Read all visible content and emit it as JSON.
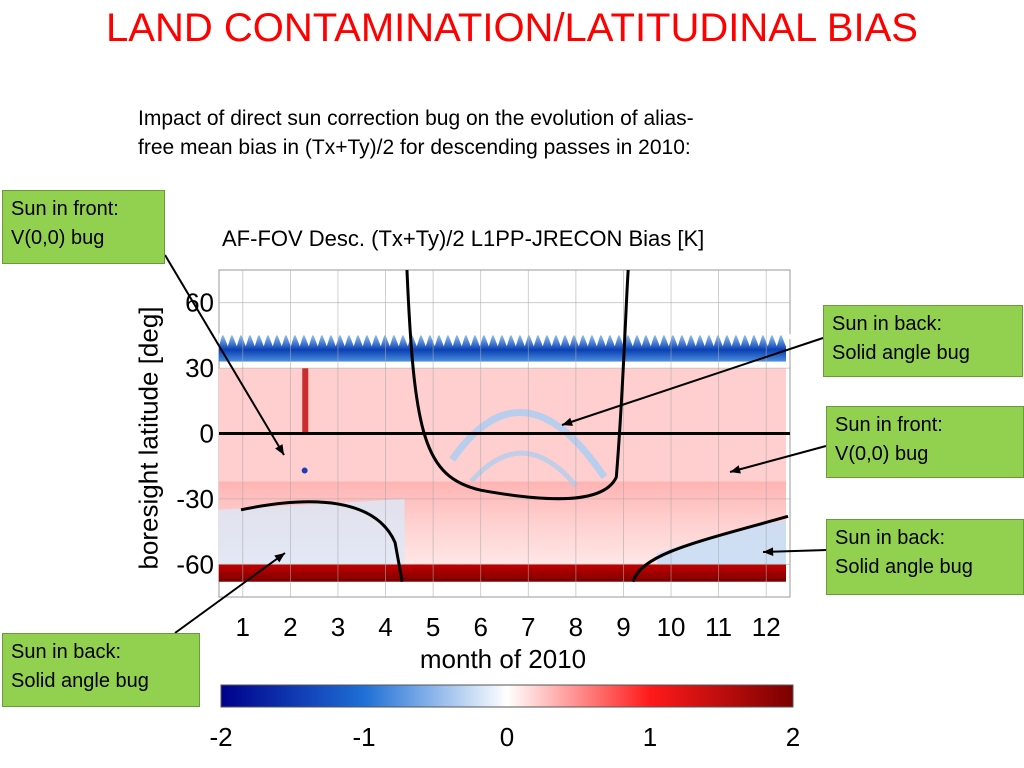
{
  "slide": {
    "title": "LAND CONTAMINATION/LATITUDINAL BIAS",
    "subtitle_line1": "Impact of direct sun correction bug on the evolution of alias-",
    "subtitle_line2": "free mean bias in (Tx+Ty)/2 for descending passes in 2010:"
  },
  "callouts": [
    {
      "line1": "Sun in front:",
      "line2": "V(0,0) bug"
    },
    {
      "line1": "Sun in back:",
      "line2": "Solid angle bug"
    },
    {
      "line1": "Sun in front:",
      "line2": "V(0,0) bug"
    },
    {
      "line1": "Sun in back:",
      "line2": "Solid angle bug"
    },
    {
      "line1": "Sun in back:",
      "line2": "Solid angle bug"
    }
  ],
  "colors": {
    "title": "#ff0000",
    "callout_fill": "#92d050",
    "colormap": [
      "#00008b",
      "#1f6fd6",
      "#ffffff",
      "#ff1a1a",
      "#7a0000"
    ]
  },
  "chart_data": {
    "type": "heatmap",
    "title": "AF-FOV Desc. (Tx+Ty)/2 L1PP-JRECON Bias [K]",
    "xlabel": "month of 2010",
    "ylabel": "boresight latitude [deg]",
    "x_ticks": [
      "1",
      "2",
      "3",
      "4",
      "5",
      "6",
      "7",
      "8",
      "9",
      "10",
      "11",
      "12"
    ],
    "y_ticks": [
      "60",
      "30",
      "0",
      "-30",
      "-60"
    ],
    "xlim": [
      0.5,
      12.5
    ],
    "ylim": [
      -75,
      75
    ],
    "grid": true,
    "data_latitude_range": [
      -68,
      45
    ],
    "colorbar": {
      "ticks": [
        "-2",
        "-1",
        "0",
        "1",
        "2"
      ],
      "range": [
        -2,
        2
      ]
    },
    "regions": [
      {
        "lat_range": [
          33,
          45
        ],
        "value": -1.5
      },
      {
        "lat_range": [
          -22,
          30
        ],
        "value": 0.6
      },
      {
        "lat_range": [
          -60,
          -22
        ],
        "value": 0.3
      },
      {
        "lat_range": [
          -68,
          -60
        ],
        "value": 2.0
      }
    ]
  }
}
